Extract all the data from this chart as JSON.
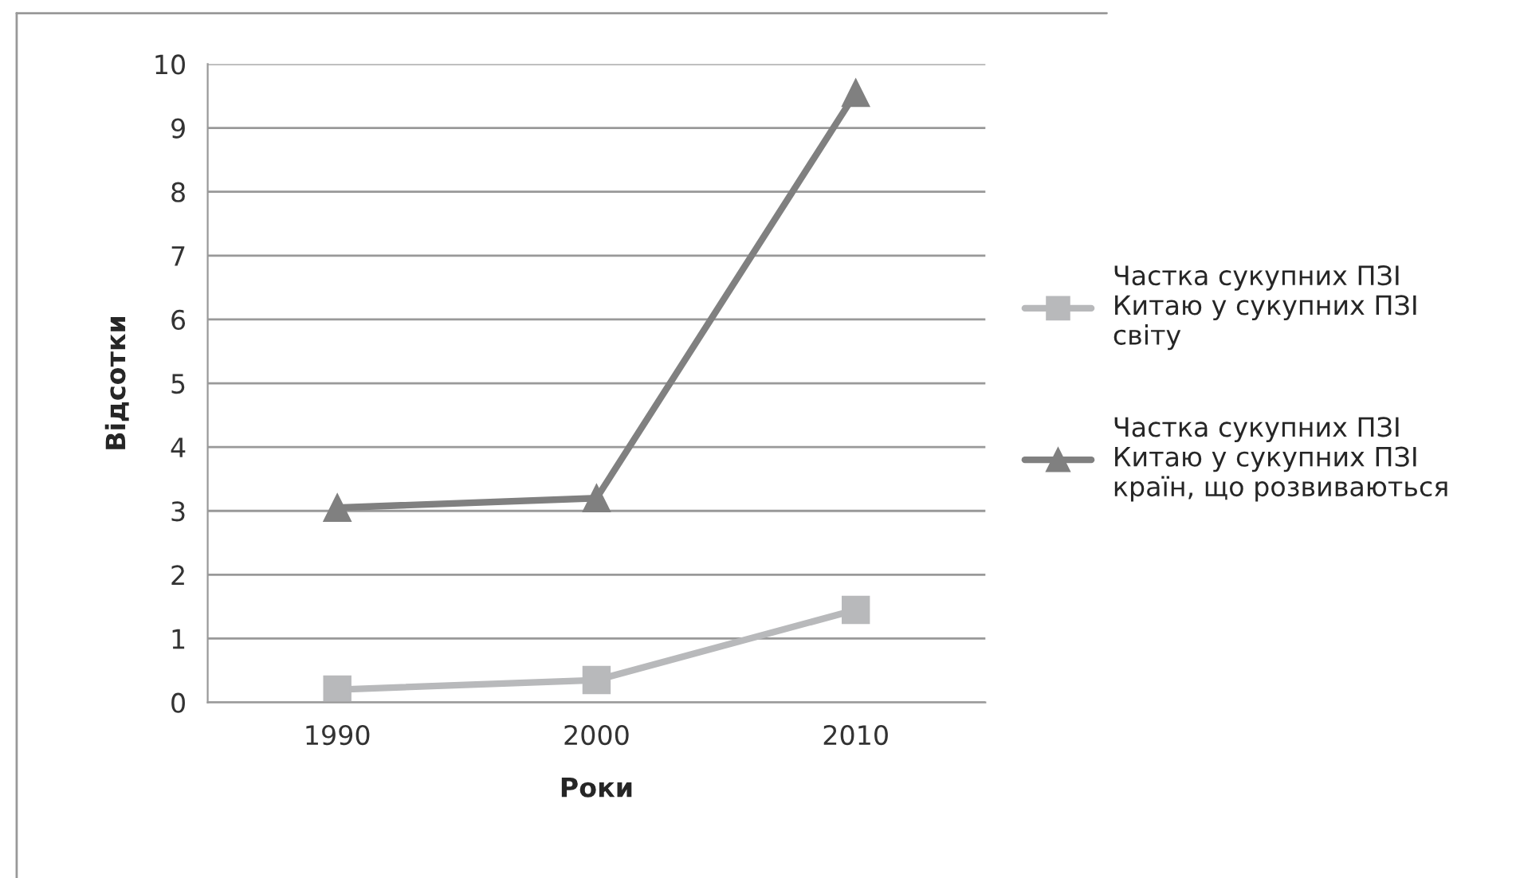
{
  "chart_data": {
    "type": "line",
    "xlabel": "Роки",
    "ylabel": "Відсотки",
    "categories": [
      "1990",
      "2000",
      "2010"
    ],
    "series": [
      {
        "name": "Частка сукупних ПЗІ Китаю у сукупних ПЗІ світу",
        "color": "#b8b9bb",
        "marker": "square",
        "values": [
          0.2,
          0.35,
          1.45
        ]
      },
      {
        "name": "Частка сукупних ПЗІ Китаю у сукупних ПЗІ країн, що розвиваються",
        "color": "#808080",
        "marker": "triangle",
        "values": [
          3.05,
          3.2,
          9.55
        ]
      }
    ],
    "ylim": [
      0,
      10
    ],
    "yticks": [
      0,
      1,
      2,
      3,
      4,
      5,
      6,
      7,
      8,
      9,
      10
    ],
    "grid": "y",
    "legend": "right"
  }
}
